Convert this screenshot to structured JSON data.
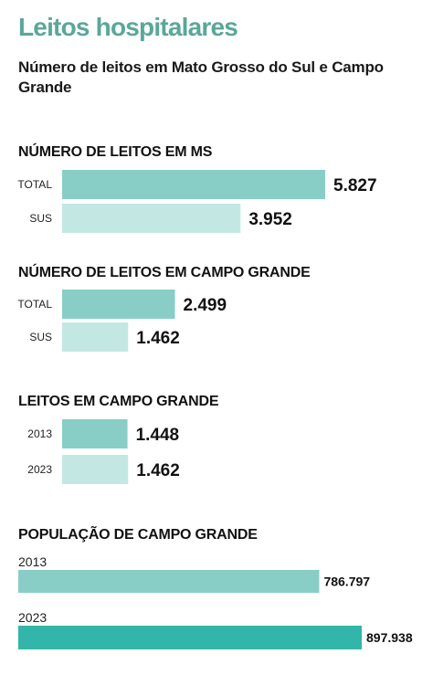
{
  "header": {
    "title": "Leitos hospitalares",
    "subtitle": "Número de leitos em Mato Grosso do Sul e Campo Grande"
  },
  "colors": {
    "accent": "#5aa79a",
    "bar_primary": "#89cec6",
    "bar_light": "#c3e8e3",
    "bar_strong": "#33b6a9"
  },
  "chart_data": [
    {
      "type": "bar",
      "orientation": "horizontal",
      "title": "NÚMERO DE LEITOS EM MS",
      "categories": [
        "TOTAL",
        "SUS"
      ],
      "values": [
        5827,
        3952
      ],
      "value_labels": [
        "5.827",
        "3.952"
      ]
    },
    {
      "type": "bar",
      "orientation": "horizontal",
      "title": "NÚMERO DE LEITOS EM CAMPO GRANDE",
      "categories": [
        "TOTAL",
        "SUS"
      ],
      "values": [
        2499,
        1462
      ],
      "value_labels": [
        "2.499",
        "1.462"
      ]
    },
    {
      "type": "bar",
      "orientation": "horizontal",
      "title": "LEITOS EM CAMPO GRANDE",
      "categories": [
        "2013",
        "2023"
      ],
      "values": [
        1448,
        1462
      ],
      "value_labels": [
        "1.448",
        "1.462"
      ]
    },
    {
      "type": "bar",
      "orientation": "horizontal",
      "title": "POPULAÇÃO DE CAMPO GRANDE",
      "categories": [
        "2013",
        "2023"
      ],
      "values": [
        786797,
        897938
      ],
      "value_labels": [
        "786.797",
        "897.938"
      ]
    }
  ]
}
